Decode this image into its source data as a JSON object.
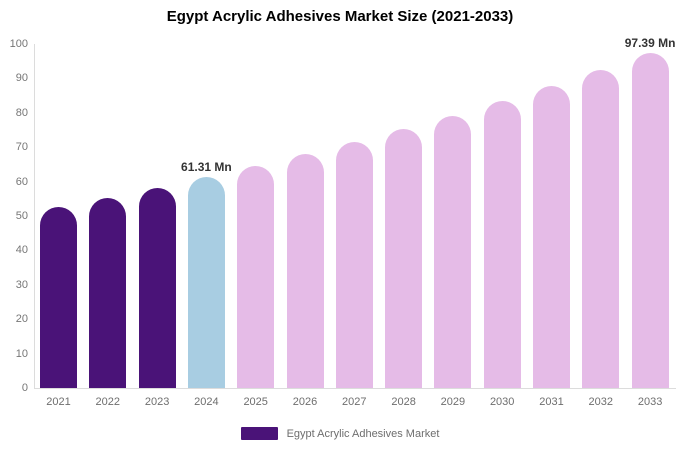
{
  "title": "Egypt Acrylic Adhesives Market Size (2021-2033)",
  "colors": {
    "historical_bar": "#4A1378",
    "base_year_bar": "#A8CDE2",
    "forecast_bar": "#E5BBE7",
    "axis_line": "#DCDCDC",
    "tick_text": "#767676",
    "data_label_text": "#333333"
  },
  "legend": {
    "label": "Egypt Acrylic Adhesives Market",
    "swatch_color": "#4A1378"
  },
  "chart_data": {
    "type": "bar",
    "title": "Egypt Acrylic Adhesives Market Size (2021-2033)",
    "categories": [
      "2021",
      "2022",
      "2023",
      "2024",
      "2025",
      "2026",
      "2027",
      "2028",
      "2029",
      "2030",
      "2031",
      "2032",
      "2033"
    ],
    "values": [
      52.5,
      55.3,
      58.2,
      61.31,
      64.5,
      67.9,
      71.5,
      75.3,
      79.2,
      83.4,
      87.8,
      92.4,
      97.39
    ],
    "unit": "Mn",
    "bar_labels": {
      "2024": "61.31 Mn",
      "2033": "97.39 Mn"
    },
    "bar_colors": [
      "#4A1378",
      "#4A1378",
      "#4A1378",
      "#A8CDE2",
      "#E5BBE7",
      "#E5BBE7",
      "#E5BBE7",
      "#E5BBE7",
      "#E5BBE7",
      "#E5BBE7",
      "#E5BBE7",
      "#E5BBE7",
      "#E5BBE7"
    ],
    "xlabel": "",
    "ylabel": "",
    "ylim": [
      0,
      100
    ],
    "yticks": [
      0,
      10,
      20,
      30,
      40,
      50,
      60,
      70,
      80,
      90,
      100
    ],
    "grid": false,
    "legend_entries": [
      "Egypt Acrylic Adhesives Market"
    ],
    "legend_position": "bottom"
  }
}
